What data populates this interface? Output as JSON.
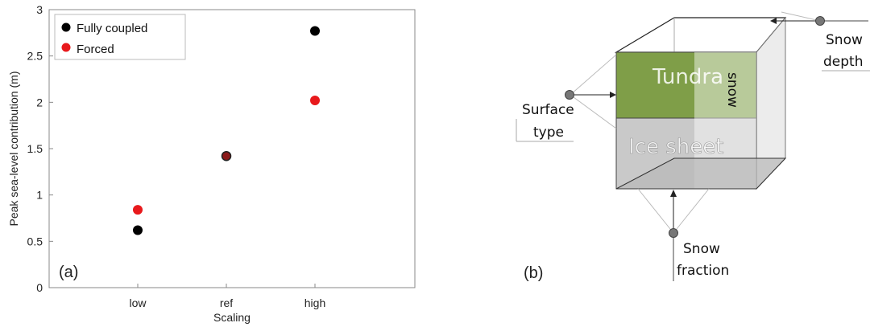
{
  "chart_data": {
    "type": "scatter",
    "categories": [
      "low",
      "ref",
      "high"
    ],
    "xlabel": "Scaling",
    "ylabel": "Peak sea-level contribution (m)",
    "ylim": [
      0,
      3
    ],
    "yticks": [
      "0",
      "0.5",
      "1",
      "1.5",
      "2",
      "2.5",
      "3"
    ],
    "grid": false,
    "legend_position": "top-left",
    "panel_label": "(a)",
    "series": [
      {
        "name": "Fully coupled",
        "color": "#000000",
        "values": [
          0.62,
          1.42,
          2.77
        ]
      },
      {
        "name": "Forced",
        "color": "#e8191c",
        "values": [
          0.84,
          1.42,
          2.02
        ]
      }
    ]
  },
  "diagram": {
    "panel_label": "(b)",
    "blocks": {
      "tundra": {
        "label": "Tundra",
        "color": "#7f9e48"
      },
      "ice_sheet": {
        "label": "Ice sheet",
        "color": "#c9c9c9"
      },
      "snow": {
        "label": "snow"
      }
    },
    "labels": {
      "surface_type_line1": "Surface",
      "surface_type_line2": "type",
      "snow_fraction_line1": "Snow",
      "snow_fraction_line2": "fraction",
      "snow_depth_line1": "Snow",
      "snow_depth_line2": "depth"
    }
  }
}
